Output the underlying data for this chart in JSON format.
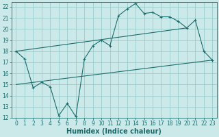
{
  "xlabel": "Humidex (Indice chaleur)",
  "bg_color": "#cce9e9",
  "grid_color": "#99cccc",
  "line_color": "#1a6b6b",
  "xlim": [
    -0.5,
    23.5
  ],
  "ylim": [
    12,
    22.4
  ],
  "xticks": [
    0,
    1,
    2,
    3,
    4,
    5,
    6,
    7,
    8,
    9,
    10,
    11,
    12,
    13,
    14,
    15,
    16,
    17,
    18,
    19,
    20,
    21,
    22,
    23
  ],
  "yticks": [
    12,
    13,
    14,
    15,
    16,
    17,
    18,
    19,
    20,
    21,
    22
  ],
  "line1_x": [
    0,
    1,
    2,
    3,
    4,
    5,
    6,
    7,
    8,
    9,
    10,
    11,
    12,
    13,
    14,
    15,
    16,
    17,
    18,
    19,
    20,
    21,
    22,
    23
  ],
  "line1_y": [
    18.0,
    17.3,
    14.7,
    15.2,
    14.8,
    12.2,
    13.3,
    12.1,
    17.3,
    18.5,
    19.0,
    18.5,
    21.2,
    21.8,
    22.3,
    21.4,
    21.5,
    21.1,
    21.1,
    20.7,
    20.1,
    20.8,
    18.0,
    17.2
  ],
  "line2_x": [
    0,
    20
  ],
  "line2_y": [
    18.0,
    20.1
  ],
  "line3_x": [
    0,
    23
  ],
  "line3_y": [
    15.0,
    17.2
  ],
  "font_size_label": 7,
  "font_size_tick": 5.5
}
